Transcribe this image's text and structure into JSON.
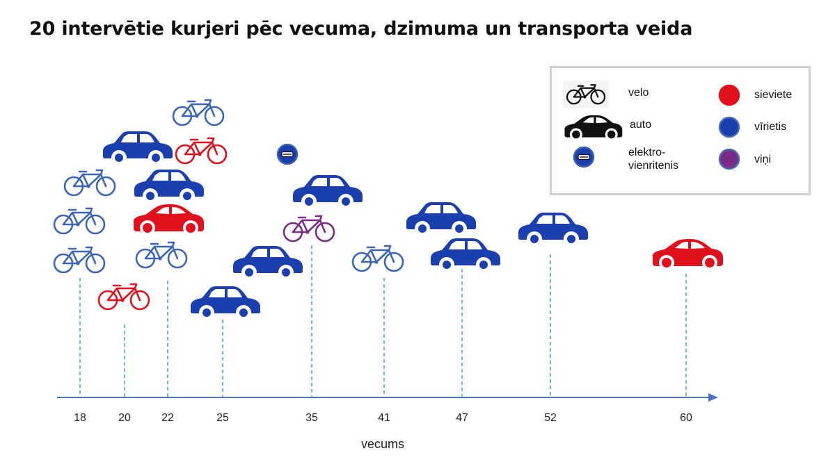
{
  "title": "20 intervētie kurjeri pēc vecuma, dzimuma un transporta veida",
  "colors": {
    "sieviete": "#e0101c",
    "virietis": "#1c3fae",
    "vini": "#7a2b85",
    "axis": "#4a74c2",
    "guide": "#4aa6d0"
  },
  "legend": {
    "transport": [
      {
        "icon": "bicycle-icon",
        "label": "velo"
      },
      {
        "icon": "car-icon",
        "label": "auto"
      },
      {
        "icon": "unicycle-icon",
        "label": "elektro-\nvienritenis"
      }
    ],
    "gender": [
      {
        "key": "sieviete",
        "label": "sieviete"
      },
      {
        "key": "virietis",
        "label": "vīrietis"
      },
      {
        "key": "vini",
        "label": "viņi"
      }
    ]
  },
  "chart_data": {
    "type": "scatter",
    "title": "20 intervētie kurjeri pēc vecuma, dzimuma un transporta veida",
    "xlabel": "vecums",
    "ylabel": "",
    "x_ticks": [
      18,
      20,
      22,
      25,
      35,
      41,
      47,
      52,
      60
    ],
    "grid": false,
    "legend_position": "top-right",
    "points": [
      {
        "age": 18,
        "transport": "velo",
        "gender": "virietis"
      },
      {
        "age": 18,
        "transport": "velo",
        "gender": "virietis"
      },
      {
        "age": 18,
        "transport": "velo",
        "gender": "virietis"
      },
      {
        "age": 20,
        "transport": "velo",
        "gender": "sieviete"
      },
      {
        "age": 22,
        "transport": "velo",
        "gender": "virietis"
      },
      {
        "age": 22,
        "transport": "auto",
        "gender": "sieviete"
      },
      {
        "age": 22,
        "transport": "auto",
        "gender": "virietis"
      },
      {
        "age": 22,
        "transport": "auto",
        "gender": "virietis"
      },
      {
        "age": 22,
        "transport": "velo",
        "gender": "sieviete"
      },
      {
        "age": 22,
        "transport": "velo",
        "gender": "virietis"
      },
      {
        "age": 25,
        "transport": "auto",
        "gender": "virietis"
      },
      {
        "age": 35,
        "transport": "auto",
        "gender": "virietis"
      },
      {
        "age": 35,
        "transport": "velo",
        "gender": "vini"
      },
      {
        "age": 35,
        "transport": "auto",
        "gender": "virietis"
      },
      {
        "age": 35,
        "transport": "elektro-vienritenis",
        "gender": "virietis"
      },
      {
        "age": 41,
        "transport": "velo",
        "gender": "virietis"
      },
      {
        "age": 47,
        "transport": "auto",
        "gender": "virietis"
      },
      {
        "age": 47,
        "transport": "auto",
        "gender": "virietis"
      },
      {
        "age": 52,
        "transport": "auto",
        "gender": "virietis"
      },
      {
        "age": 60,
        "transport": "auto",
        "gender": "sieviete"
      }
    ]
  }
}
